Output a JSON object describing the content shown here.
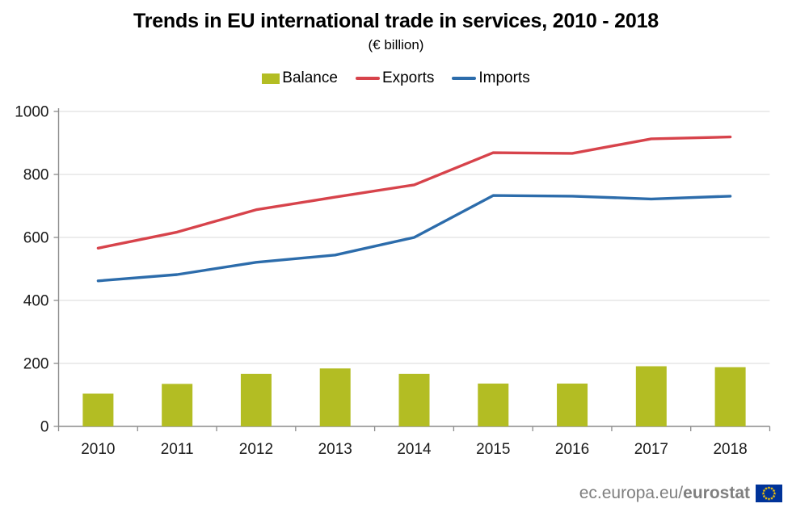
{
  "page": {
    "title": "Trends in EU international trade in services, 2010 - 2018",
    "subtitle": "(€ billion)",
    "footer": {
      "link_regular": "ec.europa.eu/",
      "link_bold": "eurostat"
    }
  },
  "colors": {
    "flag_blue": "#003399",
    "flag_yellow": "#ffcc00",
    "footer_text": "#7f7f7f"
  },
  "chart_data": {
    "type": "combo-bar-line",
    "title": "Trends in EU international trade in services, 2010 - 2018",
    "subtitle": "(€ billion)",
    "categories": [
      "2010",
      "2011",
      "2012",
      "2013",
      "2014",
      "2015",
      "2016",
      "2017",
      "2018"
    ],
    "series": [
      {
        "name": "Balance",
        "type": "bar",
        "color": "#b3bd23",
        "values": [
          104,
          135,
          167,
          184,
          167,
          136,
          136,
          191,
          188
        ]
      },
      {
        "name": "Exports",
        "type": "line",
        "color": "#d7434b",
        "values": [
          566,
          617,
          688,
          728,
          767,
          869,
          867,
          913,
          919
        ]
      },
      {
        "name": "Imports",
        "type": "line",
        "color": "#2c6cab",
        "values": [
          462,
          482,
          521,
          544,
          600,
          733,
          731,
          722,
          731
        ]
      }
    ],
    "ylim": [
      0,
      1000
    ],
    "yticks": [
      0,
      200,
      400,
      600,
      800,
      1000
    ],
    "grid": true,
    "legend_position": "top",
    "style": {
      "grid_color": "#d9d9d9",
      "axis_color": "#8c8c8c",
      "tick_label_color": "#1a1a1a"
    }
  }
}
